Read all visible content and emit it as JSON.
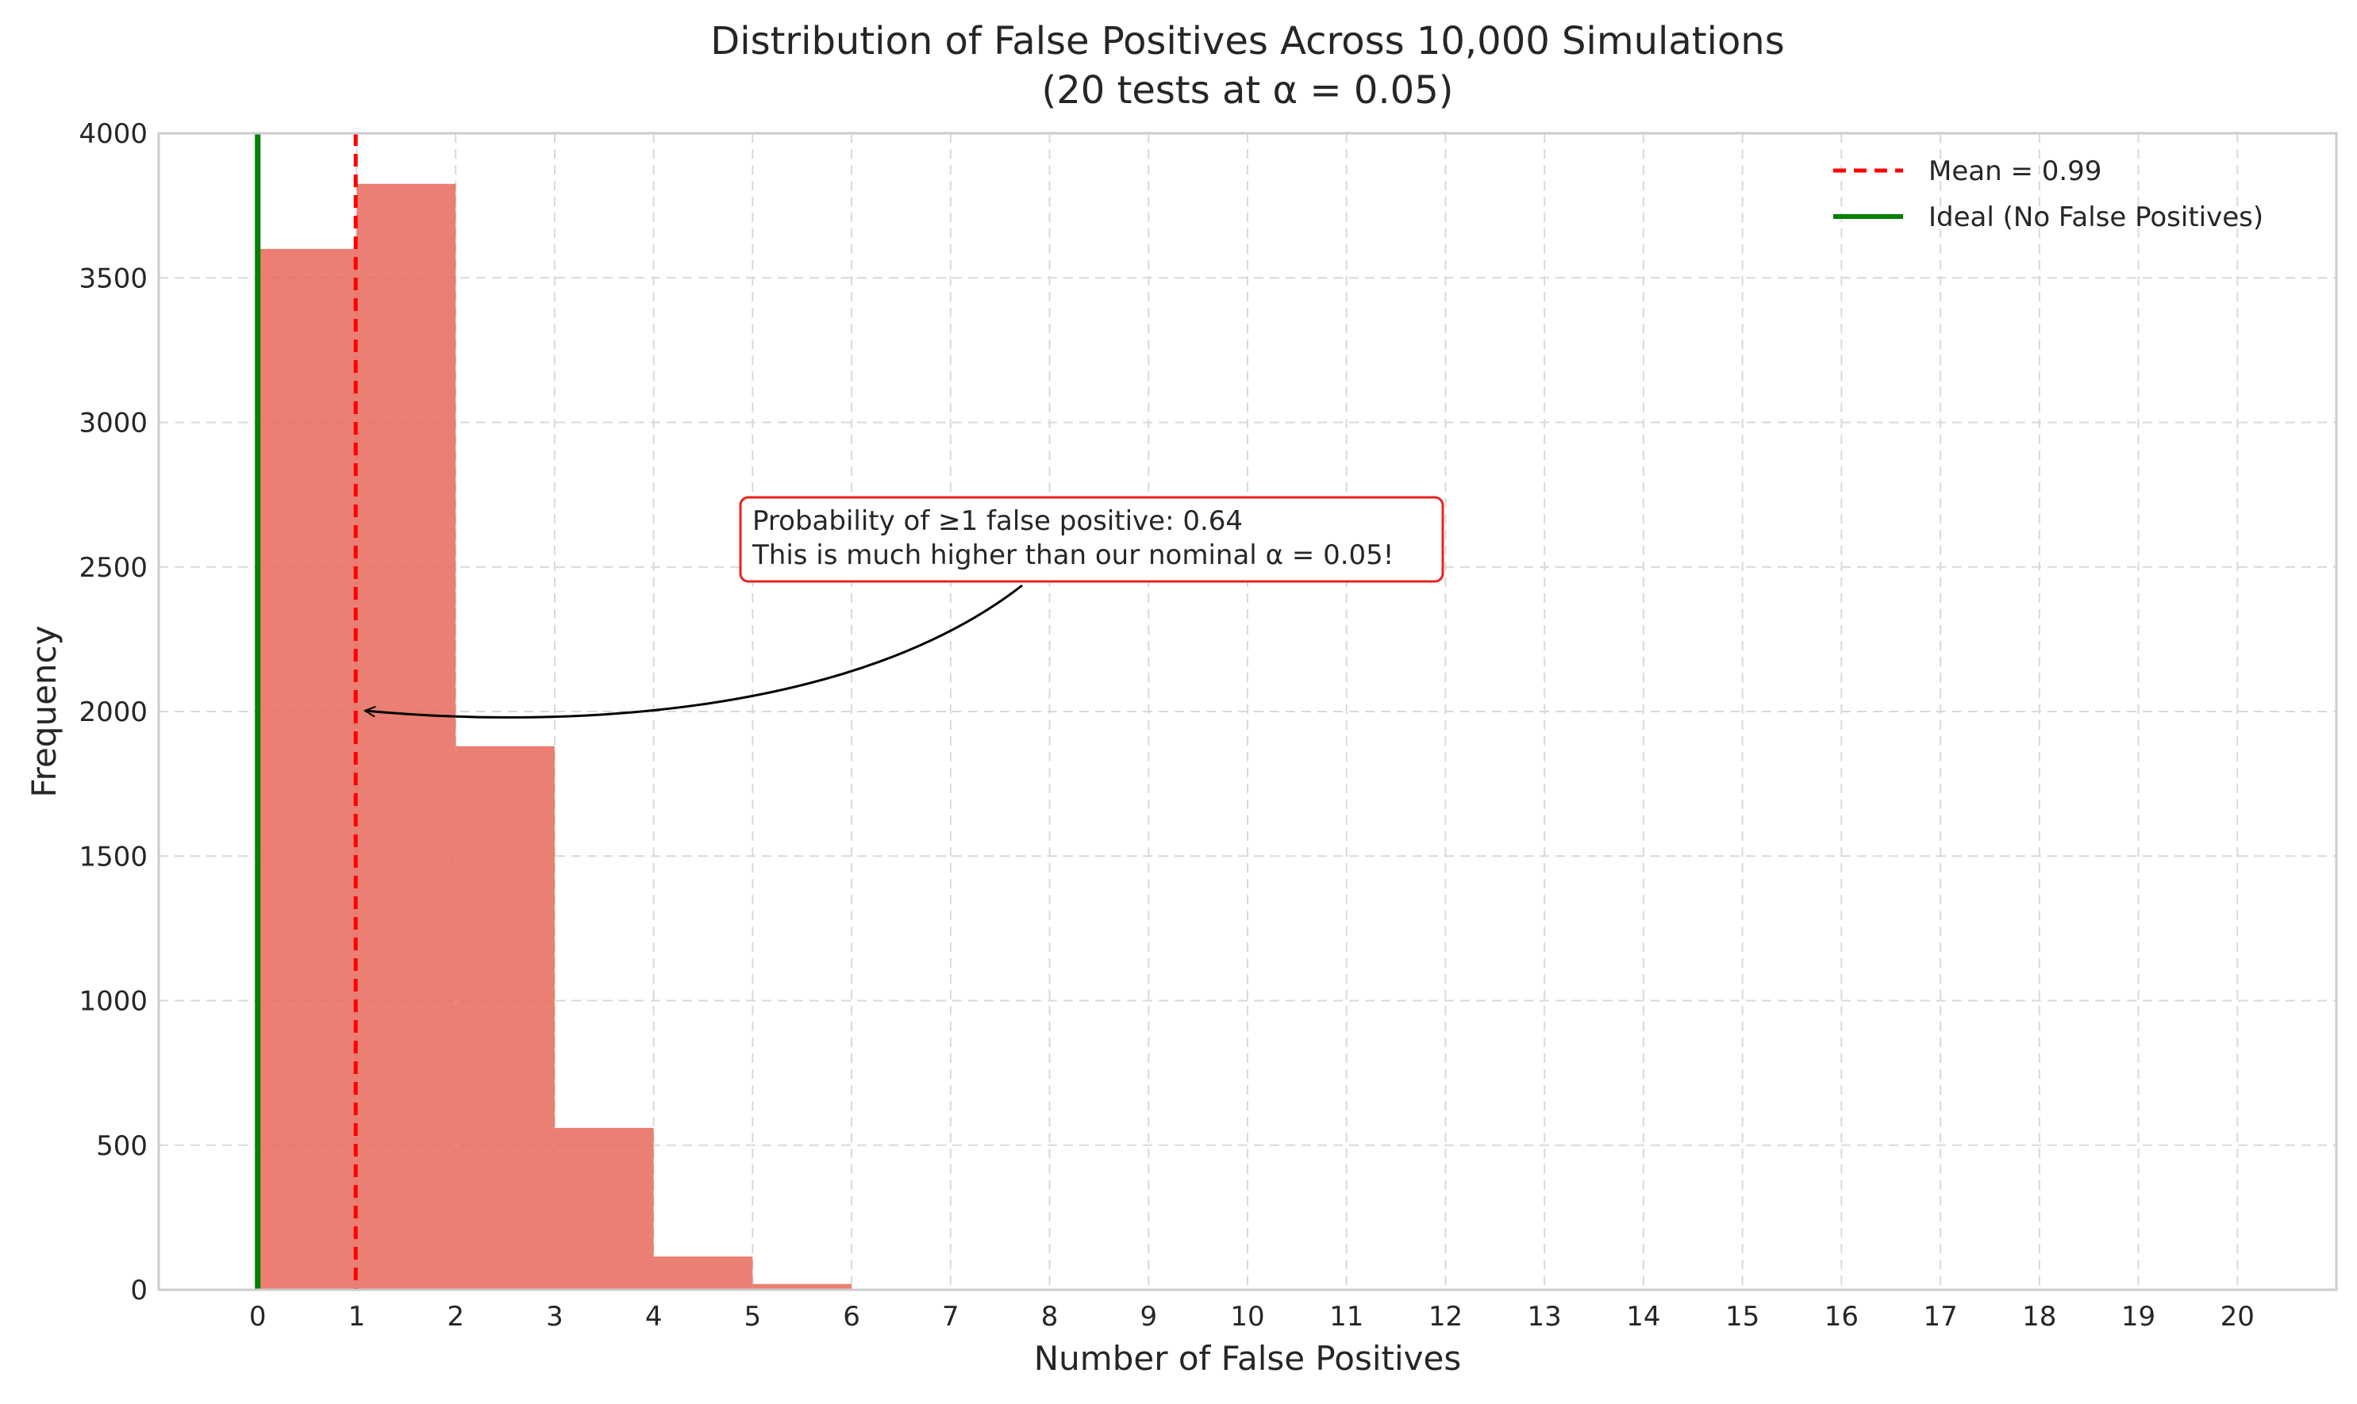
{
  "chart_data": {
    "type": "bar",
    "title": "Distribution of False Positives Across 10,000 Simulations",
    "subtitle": "(20 tests at α = 0.05)",
    "xlabel": "Number of False Positives",
    "ylabel": "Frequency",
    "xlim": [
      -1,
      21
    ],
    "ylim": [
      0,
      4000
    ],
    "x_ticks": [
      0,
      1,
      2,
      3,
      4,
      5,
      6,
      7,
      8,
      9,
      10,
      11,
      12,
      13,
      14,
      15,
      16,
      17,
      18,
      19,
      20
    ],
    "y_ticks": [
      0,
      500,
      1000,
      1500,
      2000,
      2500,
      3000,
      3500,
      4000
    ],
    "grid": true,
    "bins": [
      {
        "from": 0,
        "to": 1,
        "value": 3600
      },
      {
        "from": 1,
        "to": 2,
        "value": 3825
      },
      {
        "from": 2,
        "to": 3,
        "value": 1880
      },
      {
        "from": 3,
        "to": 4,
        "value": 560
      },
      {
        "from": 4,
        "to": 5,
        "value": 115
      },
      {
        "from": 5,
        "to": 6,
        "value": 20
      },
      {
        "from": 6,
        "to": 7,
        "value": 2
      }
    ],
    "bar_color": "#e8685a",
    "reference_lines": [
      {
        "name": "Mean = 0.99",
        "x": 0.99,
        "color": "#ff0000",
        "style": "dashed"
      },
      {
        "name": "Ideal (No False Positives)",
        "x": 0,
        "color": "#008000",
        "style": "solid"
      }
    ],
    "legend_position": "top-right",
    "annotation": {
      "lines": [
        "Probability of ≥1 false positive: 0.64",
        "This is much higher than our nominal α = 0.05!"
      ],
      "arrow_target": [
        1.0,
        2000
      ],
      "box_color": "#e8231c"
    }
  }
}
